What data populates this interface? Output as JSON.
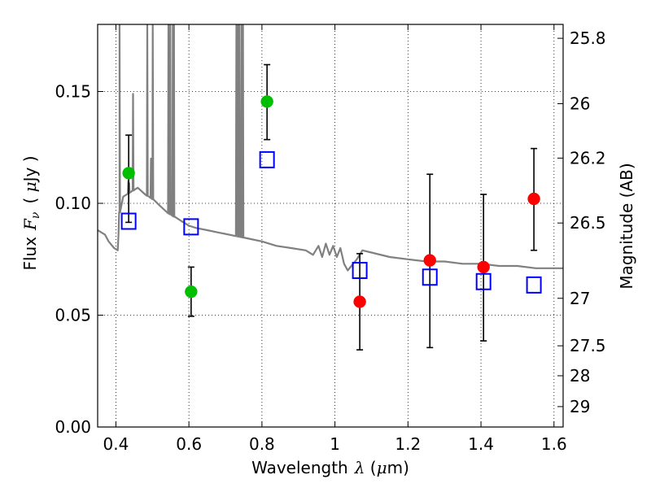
{
  "chart_data": {
    "type": "scatter",
    "xlabel": "Wavelength",
    "xlabel_symbol": "λ",
    "xlabel_unit_open": " (",
    "xlabel_unit_mu": "μ",
    "xlabel_unit_close": "m)",
    "ylabel": "Flux",
    "ylabel_symbol": "F",
    "ylabel_sub": "ν",
    "ylabel_unit_open": "( ",
    "ylabel_unit_mu": "μ",
    "ylabel_unit_close": "Jy )",
    "y2label": "Magnitude (AB)",
    "xlim": [
      0.35,
      1.625
    ],
    "ylim": [
      0.0,
      0.18
    ],
    "grid": true,
    "x_ticks": [
      0.4,
      0.6,
      0.8,
      1.0,
      1.2,
      1.4,
      1.6
    ],
    "x_tick_labels": [
      "0.4",
      "0.6",
      "0.8",
      "1",
      "1.2",
      "1.4",
      "1.6"
    ],
    "y_ticks": [
      0.0,
      0.05,
      0.1,
      0.15
    ],
    "y_tick_labels": [
      "0.00",
      "0.05",
      "0.10",
      "0.15"
    ],
    "y2_ticks": [
      25.8,
      26,
      26.2,
      26.5,
      27,
      27.5,
      28,
      29
    ],
    "y2_tick_labels": [
      "25.8",
      "26",
      "26.2",
      "26.5",
      "27",
      "27.5",
      "28",
      "29"
    ],
    "colors": {
      "green": "#00bf00",
      "red": "#ff0000",
      "blue": "#0000ff",
      "spectrum": "#808080",
      "errorbar": "#000000"
    },
    "series": [
      {
        "marker": "circle",
        "color": "green",
        "points": [
          {
            "x": 0.435,
            "y": 0.1135,
            "yerr_low": 0.0915,
            "yerr_high": 0.1305
          },
          {
            "x": 0.606,
            "y": 0.0605,
            "yerr_low": 0.0495,
            "yerr_high": 0.0715
          },
          {
            "x": 0.814,
            "y": 0.1455,
            "yerr_low": 0.1285,
            "yerr_high": 0.162
          }
        ]
      },
      {
        "marker": "circle",
        "color": "red",
        "points": [
          {
            "x": 1.068,
            "y": 0.056,
            "yerr_low": 0.0345,
            "yerr_high": 0.0775
          },
          {
            "x": 1.26,
            "y": 0.0745,
            "yerr_low": 0.0355,
            "yerr_high": 0.113
          },
          {
            "x": 1.407,
            "y": 0.0715,
            "yerr_low": 0.0385,
            "yerr_high": 0.104
          },
          {
            "x": 1.545,
            "y": 0.102,
            "yerr_low": 0.079,
            "yerr_high": 0.1245
          }
        ]
      },
      {
        "marker": "open-square",
        "color": "blue",
        "points": [
          {
            "x": 0.435,
            "y": 0.092
          },
          {
            "x": 0.606,
            "y": 0.0895
          },
          {
            "x": 0.814,
            "y": 0.1195
          },
          {
            "x": 1.068,
            "y": 0.07
          },
          {
            "x": 1.26,
            "y": 0.067
          },
          {
            "x": 1.407,
            "y": 0.065
          },
          {
            "x": 1.545,
            "y": 0.0635
          }
        ]
      }
    ],
    "spectrum": {
      "color": "spectrum",
      "continuum": [
        [
          0.35,
          0.088
        ],
        [
          0.37,
          0.086
        ],
        [
          0.38,
          0.083
        ],
        [
          0.395,
          0.08
        ],
        [
          0.405,
          0.079
        ],
        [
          0.407,
          0.086
        ],
        [
          0.41,
          0.096
        ],
        [
          0.42,
          0.103
        ],
        [
          0.43,
          0.104
        ],
        [
          0.44,
          0.105
        ],
        [
          0.45,
          0.106
        ],
        [
          0.46,
          0.107
        ],
        [
          0.48,
          0.104
        ],
        [
          0.5,
          0.102
        ],
        [
          0.52,
          0.099
        ],
        [
          0.54,
          0.096
        ],
        [
          0.56,
          0.094
        ],
        [
          0.58,
          0.092
        ],
        [
          0.6,
          0.09
        ],
        [
          0.62,
          0.089
        ],
        [
          0.65,
          0.088
        ],
        [
          0.68,
          0.087
        ],
        [
          0.71,
          0.086
        ],
        [
          0.74,
          0.085
        ],
        [
          0.77,
          0.084
        ],
        [
          0.8,
          0.083
        ],
        [
          0.84,
          0.081
        ],
        [
          0.88,
          0.08
        ],
        [
          0.92,
          0.079
        ],
        [
          0.94,
          0.077
        ],
        [
          0.955,
          0.081
        ],
        [
          0.965,
          0.076
        ],
        [
          0.975,
          0.082
        ],
        [
          0.985,
          0.077
        ],
        [
          0.995,
          0.081
        ],
        [
          1.005,
          0.076
        ],
        [
          1.015,
          0.08
        ],
        [
          1.025,
          0.073
        ],
        [
          1.035,
          0.07
        ],
        [
          1.045,
          0.072
        ],
        [
          1.06,
          0.075
        ],
        [
          1.075,
          0.079
        ],
        [
          1.1,
          0.078
        ],
        [
          1.15,
          0.076
        ],
        [
          1.2,
          0.075
        ],
        [
          1.25,
          0.074
        ],
        [
          1.3,
          0.074
        ],
        [
          1.35,
          0.073
        ],
        [
          1.4,
          0.073
        ],
        [
          1.45,
          0.072
        ],
        [
          1.5,
          0.072
        ],
        [
          1.55,
          0.071
        ],
        [
          1.6,
          0.071
        ],
        [
          1.625,
          0.071
        ]
      ],
      "emission_lines": [
        {
          "x": 0.41,
          "peak": 0.18
        },
        {
          "x": 0.434,
          "peak": 0.11
        },
        {
          "x": 0.4365,
          "peak": 0.108
        },
        {
          "x": 0.4365,
          "peak": 0.109
        },
        {
          "x": 0.447,
          "peak": 0.149
        },
        {
          "x": 0.486,
          "peak": 0.18
        },
        {
          "x": 0.496,
          "peak": 0.12
        },
        {
          "x": 0.501,
          "peak": 0.18
        },
        {
          "x": 0.544,
          "peak": 0.18
        },
        {
          "x": 0.5465,
          "peak": 0.17
        },
        {
          "x": 0.549,
          "peak": 0.18
        },
        {
          "x": 0.556,
          "peak": 0.18
        },
        {
          "x": 0.559,
          "peak": 0.18
        },
        {
          "x": 0.73,
          "peak": 0.18
        },
        {
          "x": 0.734,
          "peak": 0.18
        },
        {
          "x": 0.738,
          "peak": 0.18
        },
        {
          "x": 0.744,
          "peak": 0.18
        },
        {
          "x": 0.748,
          "peak": 0.18
        }
      ]
    }
  }
}
